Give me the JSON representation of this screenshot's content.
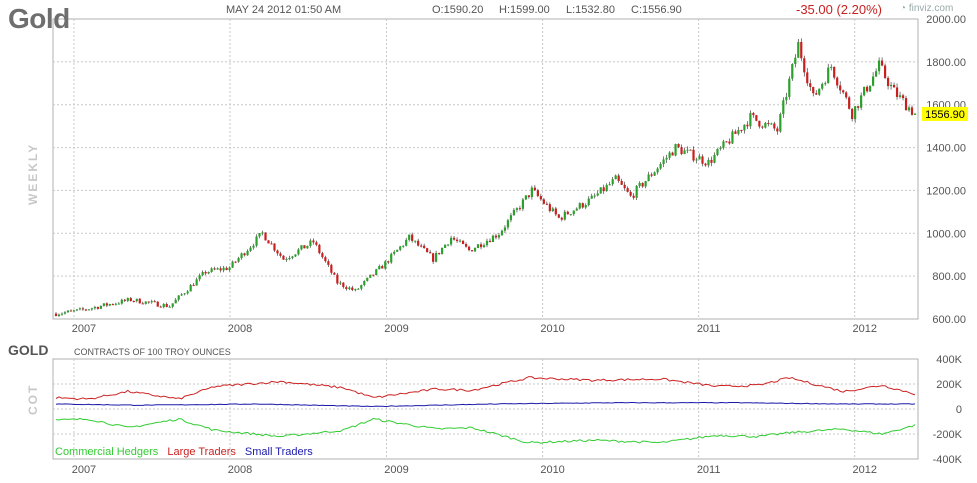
{
  "header": {
    "symbol": "Gold",
    "datetime": "MAY 24 2012 01:50 AM",
    "open": "O:1590.20",
    "high": "H:1599.00",
    "low": "L:1532.80",
    "close": "C:1556.90",
    "change": "-35.00 (2.20%)",
    "brand": "finviz.com",
    "brand_icon": "finviz-logo-icon"
  },
  "colors": {
    "up": "#2ca02c",
    "down": "#c81f1f",
    "commercial": "#33cc33",
    "large": "#cc2222",
    "small": "#1a1aaa",
    "last_price_bg": "#ffff00",
    "grid": "#c8c8c8"
  },
  "chart_data": [
    {
      "type": "candlestick",
      "frequency_label": "WEEKLY",
      "x_tick_labels": [
        "2007",
        "2008",
        "2009",
        "2010",
        "2011",
        "2012"
      ],
      "y_tick_labels": [
        "2000.00",
        "1800.00",
        "1600.00",
        "1400.00",
        "1200.00",
        "1000.00",
        "800.00",
        "600.00"
      ],
      "ylim": [
        600,
        2000
      ],
      "last_price": "1556.90",
      "grid": true,
      "anchors": [
        {
          "date": "2006-11-20",
          "price": 625
        },
        {
          "date": "2007-01-15",
          "price": 640
        },
        {
          "date": "2007-05-14",
          "price": 690
        },
        {
          "date": "2007-08-13",
          "price": 660
        },
        {
          "date": "2007-11-05",
          "price": 820
        },
        {
          "date": "2007-12-31",
          "price": 840
        },
        {
          "date": "2008-03-17",
          "price": 1000
        },
        {
          "date": "2008-05-05",
          "price": 880
        },
        {
          "date": "2008-07-14",
          "price": 960
        },
        {
          "date": "2008-09-08",
          "price": 770
        },
        {
          "date": "2008-10-20",
          "price": 730
        },
        {
          "date": "2008-12-29",
          "price": 860
        },
        {
          "date": "2009-02-23",
          "price": 980
        },
        {
          "date": "2009-04-20",
          "price": 880
        },
        {
          "date": "2009-06-01",
          "price": 980
        },
        {
          "date": "2009-07-13",
          "price": 920
        },
        {
          "date": "2009-09-21",
          "price": 1000
        },
        {
          "date": "2009-12-07",
          "price": 1200
        },
        {
          "date": "2010-02-08",
          "price": 1070
        },
        {
          "date": "2010-04-26",
          "price": 1160
        },
        {
          "date": "2010-06-21",
          "price": 1250
        },
        {
          "date": "2010-07-26",
          "price": 1170
        },
        {
          "date": "2010-11-08",
          "price": 1400
        },
        {
          "date": "2011-01-24",
          "price": 1330
        },
        {
          "date": "2011-05-02",
          "price": 1540
        },
        {
          "date": "2011-07-04",
          "price": 1480
        },
        {
          "date": "2011-08-22",
          "price": 1880
        },
        {
          "date": "2011-09-26",
          "price": 1630
        },
        {
          "date": "2011-11-07",
          "price": 1780
        },
        {
          "date": "2011-12-26",
          "price": 1560
        },
        {
          "date": "2012-02-27",
          "price": 1780
        },
        {
          "date": "2012-04-02",
          "price": 1660
        },
        {
          "date": "2012-05-21",
          "price": 1556.9
        }
      ]
    },
    {
      "type": "line",
      "title": "GOLD",
      "subtitle": "CONTRACTS OF 100 TROY OUNCES",
      "side_label": "COT",
      "x_tick_labels": [
        "2007",
        "2008",
        "2009",
        "2010",
        "2011",
        "2012"
      ],
      "y_tick_labels": [
        "400K",
        "200K",
        "0",
        "-200K",
        "-400K"
      ],
      "ylim": [
        -400000,
        400000
      ],
      "series": [
        {
          "name": "Commercial Hedgers",
          "points": [
            {
              "date": "2006-11-20",
              "value": -90000
            },
            {
              "date": "2007-02-05",
              "value": -80000
            },
            {
              "date": "2007-05-07",
              "value": -150000
            },
            {
              "date": "2007-09-03",
              "value": -80000
            },
            {
              "date": "2007-11-26",
              "value": -170000
            },
            {
              "date": "2008-04-28",
              "value": -220000
            },
            {
              "date": "2008-09-22",
              "value": -170000
            },
            {
              "date": "2008-12-01",
              "value": -80000
            },
            {
              "date": "2009-04-27",
              "value": -160000
            },
            {
              "date": "2009-07-20",
              "value": -150000
            },
            {
              "date": "2009-11-30",
              "value": -270000
            },
            {
              "date": "2010-05-03",
              "value": -250000
            },
            {
              "date": "2010-10-04",
              "value": -270000
            },
            {
              "date": "2011-02-14",
              "value": -210000
            },
            {
              "date": "2011-05-23",
              "value": -220000
            },
            {
              "date": "2011-08-01",
              "value": -190000
            },
            {
              "date": "2011-12-05",
              "value": -160000
            },
            {
              "date": "2012-03-05",
              "value": -200000
            },
            {
              "date": "2012-05-21",
              "value": -130000
            }
          ]
        },
        {
          "name": "Large Traders",
          "points": [
            {
              "date": "2006-11-20",
              "value": 90000
            },
            {
              "date": "2007-02-05",
              "value": 80000
            },
            {
              "date": "2007-05-07",
              "value": 140000
            },
            {
              "date": "2007-09-03",
              "value": 80000
            },
            {
              "date": "2007-11-26",
              "value": 180000
            },
            {
              "date": "2008-04-28",
              "value": 220000
            },
            {
              "date": "2008-09-22",
              "value": 170000
            },
            {
              "date": "2008-12-01",
              "value": 90000
            },
            {
              "date": "2009-04-27",
              "value": 160000
            },
            {
              "date": "2009-07-20",
              "value": 150000
            },
            {
              "date": "2009-11-30",
              "value": 250000
            },
            {
              "date": "2010-05-03",
              "value": 230000
            },
            {
              "date": "2010-10-04",
              "value": 240000
            },
            {
              "date": "2011-02-14",
              "value": 180000
            },
            {
              "date": "2011-05-23",
              "value": 190000
            },
            {
              "date": "2011-08-01",
              "value": 250000
            },
            {
              "date": "2011-12-05",
              "value": 140000
            },
            {
              "date": "2012-03-05",
              "value": 190000
            },
            {
              "date": "2012-05-21",
              "value": 120000
            }
          ]
        },
        {
          "name": "Small Traders",
          "points": [
            {
              "date": "2006-11-20",
              "value": 40000
            },
            {
              "date": "2007-06-04",
              "value": 30000
            },
            {
              "date": "2008-03-03",
              "value": 40000
            },
            {
              "date": "2008-12-01",
              "value": 20000
            },
            {
              "date": "2009-09-07",
              "value": 40000
            },
            {
              "date": "2010-06-07",
              "value": 50000
            },
            {
              "date": "2011-04-04",
              "value": 50000
            },
            {
              "date": "2011-12-05",
              "value": 40000
            },
            {
              "date": "2012-05-21",
              "value": 40000
            }
          ]
        }
      ]
    }
  ]
}
